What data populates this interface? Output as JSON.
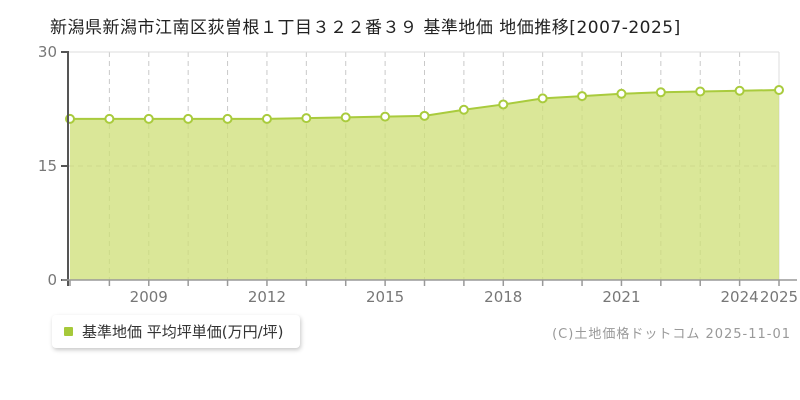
{
  "title": "新潟県新潟市江南区荻曽根１丁目３２２番３９ 基準地価 地価推移[2007-2025]",
  "legend": {
    "label": "基準地価 平均坪単価(万円/坪)",
    "marker_color": "#a6c93a"
  },
  "footer": {
    "copyright": "(C)土地価格ドットコム 2025-11-01"
  },
  "chart_data": {
    "type": "area",
    "title": "新潟県新潟市江南区荻曽根１丁目３２２番３９ 基準地価 地価推移[2007-2025]",
    "series_name": "基準地価 平均坪単価(万円/坪)",
    "x": [
      2007,
      2008,
      2009,
      2010,
      2011,
      2012,
      2013,
      2014,
      2015,
      2016,
      2017,
      2018,
      2019,
      2020,
      2021,
      2022,
      2023,
      2024,
      2025
    ],
    "values": [
      21.2,
      21.2,
      21.2,
      21.2,
      21.2,
      21.2,
      21.3,
      21.4,
      21.5,
      21.6,
      22.4,
      23.1,
      23.9,
      24.2,
      24.5,
      24.7,
      24.8,
      24.9,
      25.0
    ],
    "ylabel": "平均坪単価(万円/坪)",
    "ylim": [
      0,
      30
    ],
    "yticks": [
      0,
      15,
      30
    ],
    "xtick_labels": [
      "2009",
      "2012",
      "2015",
      "2018",
      "2021",
      "2024",
      "2025"
    ],
    "grid": "dashed",
    "legend_position": "bottom-left",
    "colors": {
      "line": "#a9cb3d",
      "fill": "#cddf76",
      "fill_opacity": 0.75,
      "marker_fill": "#ffffff",
      "grid": "#c9c9c9",
      "plot_border": "#dddddd",
      "y_axis": "#555555",
      "x_axis": "#999999",
      "tick_text": "#777777",
      "title_text": "#222222",
      "footer_text": "#999999"
    }
  }
}
